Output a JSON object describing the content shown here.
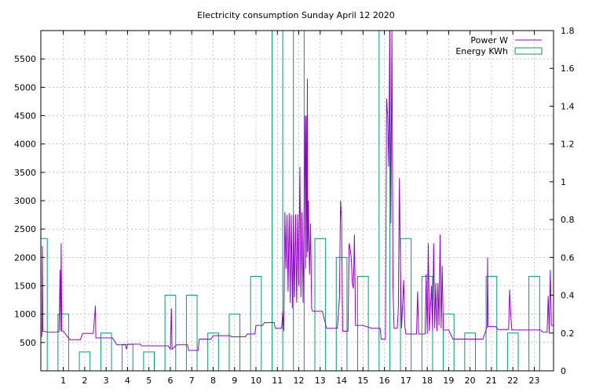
{
  "chart_data": {
    "type": "line",
    "title": "Electricity consumption Sunday April 12 2020",
    "xlabel": "",
    "ylabel": "",
    "y2label": "",
    "xlim": [
      -0.05,
      23.9
    ],
    "ylim": [
      0,
      6000
    ],
    "y2lim": [
      0,
      1.8
    ],
    "x_ticks": [
      1,
      2,
      3,
      4,
      5,
      6,
      7,
      8,
      9,
      10,
      11,
      12,
      13,
      14,
      15,
      16,
      17,
      18,
      19,
      20,
      21,
      22,
      23
    ],
    "y_ticks": [
      500,
      1000,
      1500,
      2000,
      2500,
      3000,
      3500,
      4000,
      4500,
      5000,
      5500
    ],
    "y2_ticks": [
      0,
      0.2,
      0.4,
      0.6,
      0.8,
      1,
      1.2,
      1.4,
      1.6,
      1.8
    ],
    "grid": true,
    "legend_position": "top-right",
    "colors": {
      "power": "#9400d3",
      "energy": "#009e73"
    },
    "series": [
      {
        "name": "Power W",
        "style": "line",
        "axis": "left",
        "points": [
          [
            0.0,
            600
          ],
          [
            0.02,
            2200
          ],
          [
            0.04,
            700
          ],
          [
            0.3,
            680
          ],
          [
            0.6,
            680
          ],
          [
            0.8,
            690
          ],
          [
            0.85,
            1780
          ],
          [
            0.88,
            700
          ],
          [
            0.9,
            2250
          ],
          [
            0.93,
            700
          ],
          [
            1.0,
            700
          ],
          [
            1.3,
            550
          ],
          [
            1.8,
            550
          ],
          [
            1.9,
            660
          ],
          [
            2.4,
            660
          ],
          [
            2.5,
            1150
          ],
          [
            2.52,
            580
          ],
          [
            3.0,
            580
          ],
          [
            3.3,
            580
          ],
          [
            3.5,
            460
          ],
          [
            3.9,
            460
          ],
          [
            3.95,
            380
          ],
          [
            4.0,
            470
          ],
          [
            4.6,
            470
          ],
          [
            4.65,
            440
          ],
          [
            5.3,
            440
          ],
          [
            5.9,
            440
          ],
          [
            6.0,
            380
          ],
          [
            6.05,
            1100
          ],
          [
            6.08,
            380
          ],
          [
            6.3,
            460
          ],
          [
            6.8,
            460
          ],
          [
            6.85,
            360
          ],
          [
            7.3,
            360
          ],
          [
            7.35,
            560
          ],
          [
            7.9,
            560
          ],
          [
            8.0,
            620
          ],
          [
            8.8,
            620
          ],
          [
            8.85,
            600
          ],
          [
            9.5,
            600
          ],
          [
            9.6,
            650
          ],
          [
            9.95,
            650
          ],
          [
            10.0,
            800
          ],
          [
            10.3,
            800
          ],
          [
            10.4,
            850
          ],
          [
            10.85,
            850
          ],
          [
            10.9,
            750
          ],
          [
            11.2,
            750
          ],
          [
            11.25,
            1050
          ],
          [
            11.3,
            700
          ],
          [
            11.35,
            2800
          ],
          [
            11.4,
            1800
          ],
          [
            11.45,
            2750
          ],
          [
            11.5,
            1400
          ],
          [
            11.55,
            2780
          ],
          [
            11.6,
            1200
          ],
          [
            11.65,
            2750
          ],
          [
            11.7,
            1100
          ],
          [
            11.75,
            2760
          ],
          [
            11.8,
            1300
          ],
          [
            11.85,
            2760
          ],
          [
            11.9,
            1200
          ],
          [
            11.95,
            2760
          ],
          [
            12.0,
            1500
          ],
          [
            12.05,
            3600
          ],
          [
            12.1,
            1300
          ],
          [
            12.15,
            2800
          ],
          [
            12.2,
            1200
          ],
          [
            12.25,
            2800
          ],
          [
            12.3,
            4500
          ],
          [
            12.32,
            1800
          ],
          [
            12.35,
            4500
          ],
          [
            12.38,
            2000
          ],
          [
            12.4,
            5150
          ],
          [
            12.42,
            2100
          ],
          [
            12.45,
            3000
          ],
          [
            12.5,
            1700
          ],
          [
            12.55,
            2600
          ],
          [
            12.6,
            1100
          ],
          [
            12.65,
            1050
          ],
          [
            13.0,
            1050
          ],
          [
            13.1,
            1050
          ],
          [
            13.3,
            750
          ],
          [
            13.8,
            750
          ],
          [
            13.9,
            1300
          ],
          [
            13.95,
            3000
          ],
          [
            14.0,
            2650
          ],
          [
            14.05,
            700
          ],
          [
            14.3,
            700
          ],
          [
            14.35,
            2250
          ],
          [
            14.4,
            2150
          ],
          [
            14.45,
            2000
          ],
          [
            14.5,
            1550
          ],
          [
            14.55,
            1450
          ],
          [
            14.6,
            2400
          ],
          [
            14.65,
            800
          ],
          [
            15.0,
            800
          ],
          [
            15.4,
            750
          ],
          [
            15.8,
            750
          ],
          [
            15.85,
            560
          ],
          [
            16.05,
            560
          ],
          [
            16.1,
            4800
          ],
          [
            16.15,
            4500
          ],
          [
            16.2,
            3600
          ],
          [
            16.25,
            6000
          ],
          [
            16.3,
            2600
          ],
          [
            16.35,
            6000
          ],
          [
            16.4,
            1500
          ],
          [
            16.45,
            750
          ],
          [
            16.6,
            750
          ],
          [
            16.65,
            1100
          ],
          [
            16.7,
            3400
          ],
          [
            16.75,
            1800
          ],
          [
            16.8,
            750
          ],
          [
            16.9,
            1600
          ],
          [
            16.95,
            800
          ],
          [
            17.0,
            650
          ],
          [
            17.5,
            650
          ],
          [
            17.55,
            1400
          ],
          [
            17.6,
            650
          ],
          [
            17.9,
            650
          ],
          [
            17.95,
            1700
          ],
          [
            18.0,
            650
          ],
          [
            18.05,
            2250
          ],
          [
            18.1,
            700
          ],
          [
            18.2,
            1500
          ],
          [
            18.25,
            700
          ],
          [
            18.3,
            2250
          ],
          [
            18.35,
            750
          ],
          [
            18.4,
            1550
          ],
          [
            18.45,
            700
          ],
          [
            18.5,
            1550
          ],
          [
            18.55,
            800
          ],
          [
            18.6,
            2400
          ],
          [
            18.65,
            750
          ],
          [
            18.7,
            1850
          ],
          [
            18.75,
            720
          ],
          [
            19.0,
            720
          ],
          [
            19.2,
            560
          ],
          [
            20.6,
            560
          ],
          [
            20.8,
            780
          ],
          [
            20.82,
            2000
          ],
          [
            20.85,
            780
          ],
          [
            21.2,
            780
          ],
          [
            21.3,
            730
          ],
          [
            21.8,
            730
          ],
          [
            21.85,
            1430
          ],
          [
            21.9,
            1000
          ],
          [
            21.95,
            720
          ],
          [
            22.5,
            720
          ],
          [
            23.3,
            720
          ],
          [
            23.4,
            680
          ],
          [
            23.6,
            680
          ],
          [
            23.65,
            1320
          ],
          [
            23.7,
            660
          ],
          [
            23.75,
            1780
          ],
          [
            23.8,
            800
          ],
          [
            23.9,
            800
          ]
        ]
      },
      {
        "name": "Energy KWh",
        "style": "boxes",
        "axis": "right",
        "box_width": 0.5,
        "points": [
          [
            0,
            0.7
          ],
          [
            1,
            0.3
          ],
          [
            2,
            0.1
          ],
          [
            3,
            0.2
          ],
          [
            4,
            0.14
          ],
          [
            5,
            0.1
          ],
          [
            6,
            0.4
          ],
          [
            7,
            0.4
          ],
          [
            8,
            0.2
          ],
          [
            9,
            0.3
          ],
          [
            10,
            0.5
          ],
          [
            11,
            1.8
          ],
          [
            12,
            1.8
          ],
          [
            13,
            0.7
          ],
          [
            14,
            0.6
          ],
          [
            15,
            0.5
          ],
          [
            16,
            1.8
          ],
          [
            17,
            0.7
          ],
          [
            18,
            0.5
          ],
          [
            19,
            0.3
          ],
          [
            20,
            0.2
          ],
          [
            21,
            0.5
          ],
          [
            22,
            0.2
          ],
          [
            23,
            0.5
          ]
        ]
      }
    ]
  }
}
